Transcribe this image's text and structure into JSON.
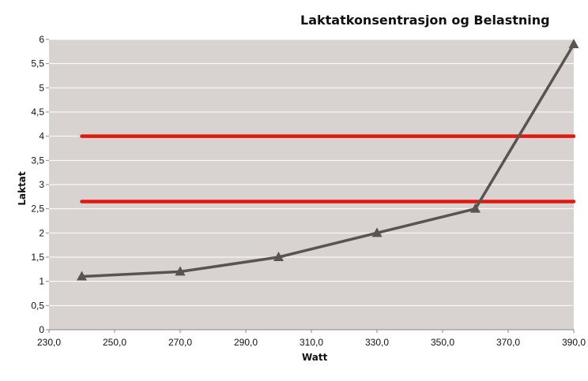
{
  "chart_data": {
    "type": "line",
    "title": "Laktatkonsentrasjon og Belastning",
    "xlabel": "Watt",
    "ylabel": "Laktat",
    "xlim": [
      230,
      390
    ],
    "ylim": [
      0,
      6
    ],
    "x_ticks": [
      "230,0",
      "250,0",
      "270,0",
      "290,0",
      "310,0",
      "330,0",
      "350,0",
      "370,0",
      "390,0"
    ],
    "y_ticks": [
      "0",
      "0,5",
      "1",
      "1,5",
      "2",
      "2,5",
      "3",
      "3,5",
      "4",
      "4,5",
      "5",
      "5,5",
      "6"
    ],
    "grid": true,
    "legend": "none",
    "series": [
      {
        "x": [
          240,
          270,
          300,
          330,
          360,
          390
        ],
        "values": [
          1.1,
          1.2,
          1.5,
          2.0,
          2.5,
          5.9
        ],
        "color": "#5b5350",
        "marker": "triangle"
      }
    ],
    "reference_lines": [
      {
        "y": 4.0,
        "x_range": [
          240,
          390
        ],
        "color": "#e01a10"
      },
      {
        "y": 2.65,
        "x_range": [
          240,
          390
        ],
        "color": "#e01a10"
      }
    ],
    "plot_background": "#d8d3d0",
    "grid_color": "#ffffff"
  }
}
